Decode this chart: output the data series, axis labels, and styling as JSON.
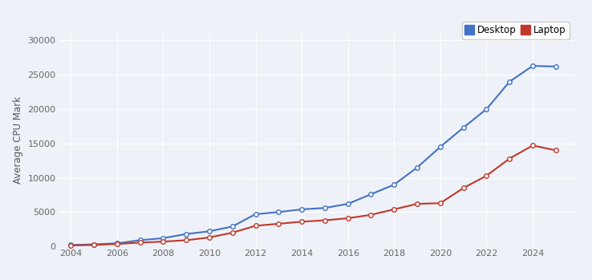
{
  "desktop_x": [
    2004,
    2005,
    2006,
    2007,
    2008,
    2009,
    2010,
    2011,
    2012,
    2013,
    2014,
    2015,
    2016,
    2017,
    2018,
    2019,
    2020,
    2021,
    2022,
    2023,
    2024,
    2025
  ],
  "desktop_y": [
    200,
    300,
    450,
    900,
    1200,
    1800,
    2200,
    2900,
    4700,
    5000,
    5400,
    5600,
    6200,
    7600,
    9000,
    11500,
    14500,
    17300,
    20000,
    24000,
    26300,
    26200
  ],
  "laptop_x": [
    2004,
    2005,
    2006,
    2007,
    2008,
    2009,
    2010,
    2011,
    2012,
    2013,
    2014,
    2015,
    2016,
    2017,
    2018,
    2019,
    2020,
    2021,
    2022,
    2023,
    2024,
    2025
  ],
  "laptop_y": [
    150,
    200,
    350,
    550,
    700,
    900,
    1300,
    2000,
    3000,
    3300,
    3600,
    3800,
    4100,
    4600,
    5400,
    6200,
    6300,
    8500,
    10300,
    12800,
    14700,
    14000
  ],
  "desktop_color": "#4472C4",
  "laptop_color": "#C0392B",
  "marker_style": "o",
  "marker_size": 4,
  "line_width": 1.5,
  "ylabel": "Average CPU Mark",
  "ylim": [
    0,
    31000
  ],
  "yticks": [
    0,
    5000,
    10000,
    15000,
    20000,
    25000,
    30000
  ],
  "xlim": [
    2003.5,
    2025.8
  ],
  "xticks": [
    2004,
    2006,
    2008,
    2010,
    2012,
    2014,
    2016,
    2018,
    2020,
    2022,
    2024
  ],
  "bg_color": "#EEF2F8",
  "plot_bg_color": "#EEF2F8",
  "grid_color": "#ffffff",
  "legend_labels": [
    "Desktop",
    "Laptop"
  ],
  "legend_marker_desktop": "#4472C4",
  "legend_marker_laptop": "#C0392B"
}
